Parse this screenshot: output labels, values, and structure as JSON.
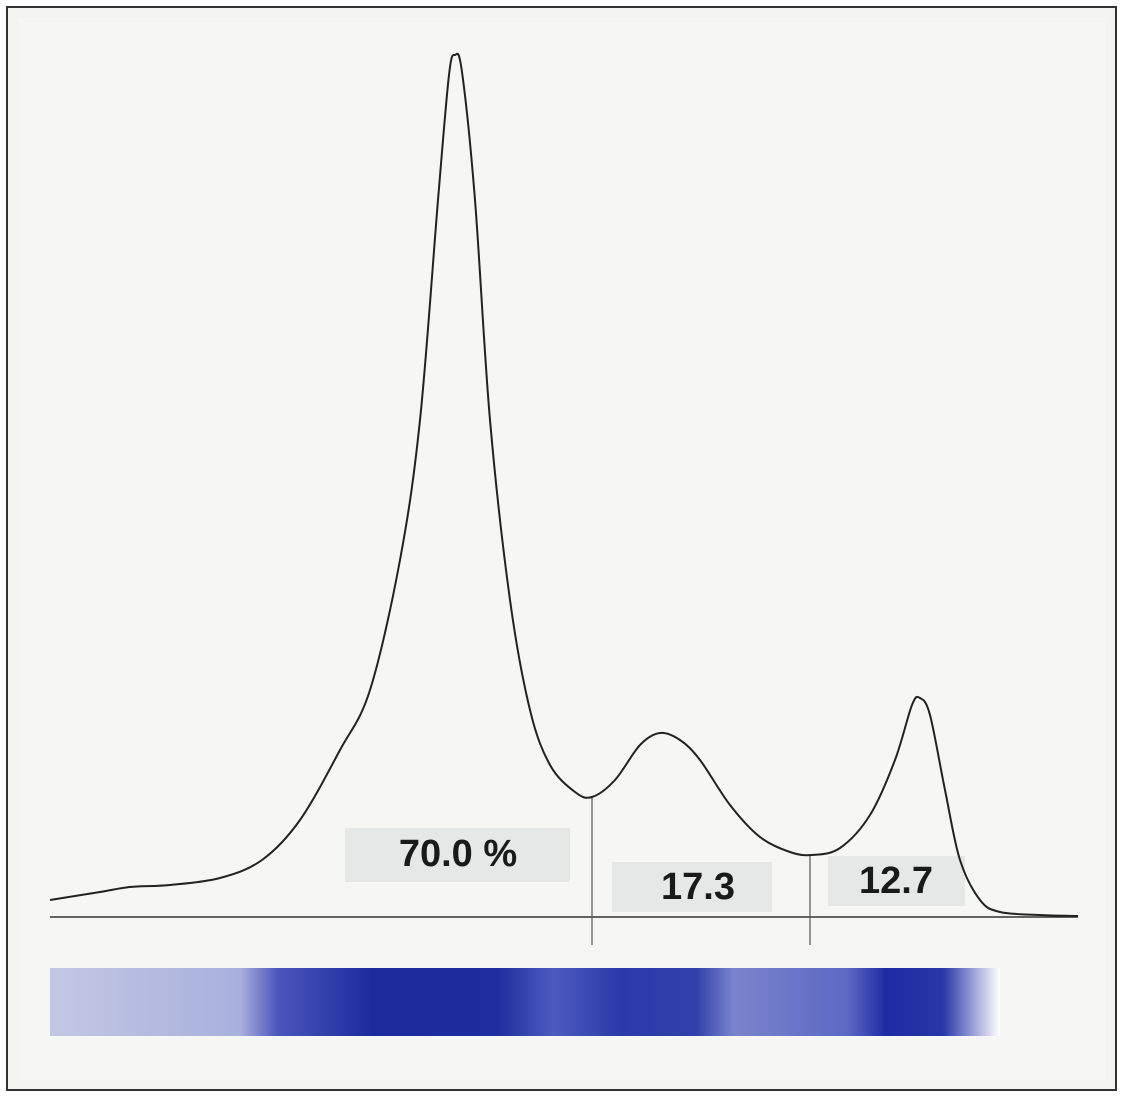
{
  "labels": [
    {
      "text": "70.0 %"
    },
    {
      "text": "17.3"
    },
    {
      "text": "12.7"
    }
  ]
}
